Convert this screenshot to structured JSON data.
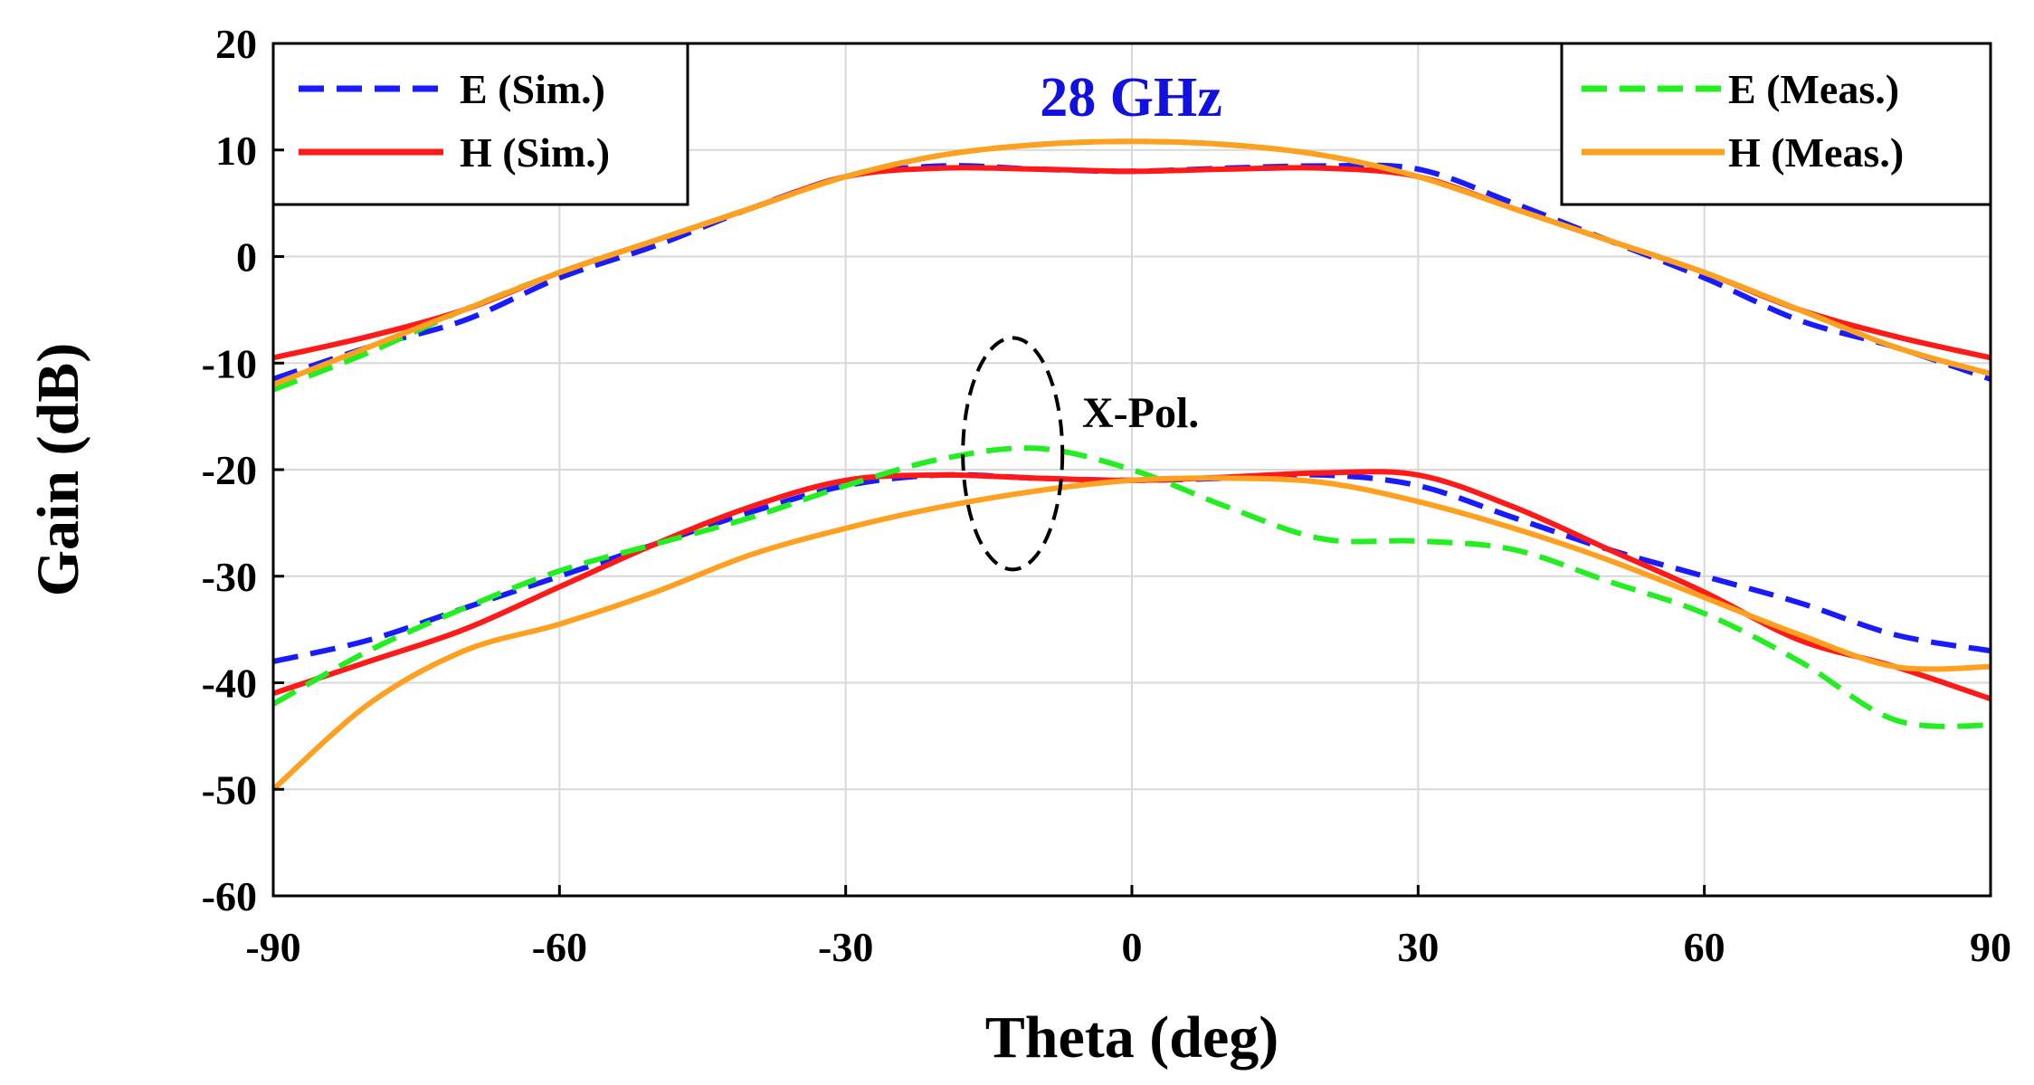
{
  "chart_data": {
    "type": "line",
    "title": "28 GHz",
    "xlabel": "Theta (deg)",
    "ylabel": "Gain (dB)",
    "xlim": [
      -90,
      90
    ],
    "ylim": [
      -60,
      20
    ],
    "xticks": [
      -90,
      -60,
      -30,
      0,
      30,
      60,
      90
    ],
    "yticks": [
      -60,
      -50,
      -40,
      -30,
      -20,
      -10,
      0,
      10,
      20
    ],
    "xtick_labels": [
      "-90",
      "-60",
      "-30",
      "0",
      "30",
      "60",
      "90"
    ],
    "ytick_labels": [
      "-60",
      "-50",
      "-40",
      "-30",
      "-20",
      "-10",
      "0",
      "10",
      "20"
    ],
    "grid": true,
    "legend_left": [
      "E (Sim.)",
      "H (Sim.)"
    ],
    "legend_right": [
      "E (Meas.)",
      "H (Meas.)"
    ],
    "annotation": "X-Pol.",
    "colors": {
      "e_sim": "#1a1aff",
      "h_sim": "#ff1a1a",
      "e_meas": "#22ee22",
      "h_meas": "#ffa020",
      "freq": "#1010e0"
    },
    "series": [
      {
        "name": "E (Sim.) co-pol",
        "key": "e_sim",
        "dash": true,
        "x": [
          -90,
          -80,
          -70,
          -60,
          -50,
          -40,
          -30,
          -20,
          -10,
          0,
          10,
          20,
          30,
          40,
          50,
          60,
          70,
          80,
          90
        ],
        "y": [
          -11.5,
          -8.5,
          -6,
          -2,
          1,
          4.5,
          7.5,
          8.5,
          8.2,
          8,
          8.3,
          8.5,
          8.2,
          5,
          1.5,
          -2,
          -6,
          -8.5,
          -11.5
        ]
      },
      {
        "name": "H (Sim.) co-pol",
        "key": "h_sim",
        "dash": false,
        "x": [
          -90,
          -80,
          -70,
          -60,
          -50,
          -40,
          -30,
          -20,
          -10,
          0,
          10,
          20,
          30,
          40,
          50,
          60,
          70,
          80,
          90
        ],
        "y": [
          -9.5,
          -7.5,
          -5,
          -1.5,
          1.5,
          4.5,
          7.5,
          8.3,
          8.2,
          8,
          8.2,
          8.3,
          7.5,
          4.5,
          1.5,
          -1.5,
          -5,
          -7.5,
          -9.5
        ]
      },
      {
        "name": "E (Meas.) co-pol",
        "key": "e_meas",
        "dash": true,
        "x": [
          -90,
          -80,
          -70,
          -60,
          -50,
          -40,
          -30,
          -20,
          -10,
          0,
          10,
          20,
          30,
          40,
          50,
          60,
          70,
          80,
          90
        ],
        "y": [
          -12.5,
          -9,
          -5,
          -1.5,
          1.5,
          4.5,
          7.5,
          9.5,
          10.5,
          10.8,
          10.5,
          9.5,
          7.5,
          4.5,
          1.5,
          -1.5,
          -5,
          -8.5,
          -11
        ]
      },
      {
        "name": "H (Meas.) co-pol",
        "key": "h_meas",
        "dash": false,
        "x": [
          -90,
          -80,
          -70,
          -60,
          -50,
          -40,
          -30,
          -20,
          -10,
          0,
          10,
          20,
          30,
          40,
          50,
          60,
          70,
          80,
          90
        ],
        "y": [
          -12,
          -8.5,
          -5,
          -1.5,
          1.5,
          4.5,
          7.5,
          9.5,
          10.5,
          10.8,
          10.5,
          9.5,
          7.5,
          4.5,
          1.5,
          -1.5,
          -5,
          -8.5,
          -11
        ]
      },
      {
        "name": "E (Sim.) X-pol",
        "key": "e_sim",
        "dash": true,
        "x": [
          -90,
          -80,
          -70,
          -60,
          -50,
          -40,
          -30,
          -20,
          -10,
          0,
          10,
          20,
          30,
          40,
          50,
          60,
          70,
          80,
          90
        ],
        "y": [
          -38,
          -36,
          -33,
          -30,
          -27,
          -24,
          -21.5,
          -20.5,
          -20.8,
          -21,
          -20.8,
          -20.5,
          -21.5,
          -24.5,
          -27.5,
          -30,
          -32.5,
          -35.5,
          -37
        ]
      },
      {
        "name": "H (Sim.) X-pol",
        "key": "h_sim",
        "dash": false,
        "x": [
          -90,
          -80,
          -70,
          -60,
          -50,
          -40,
          -30,
          -20,
          -10,
          0,
          10,
          20,
          30,
          40,
          50,
          60,
          70,
          80,
          90
        ],
        "y": [
          -41,
          -38,
          -35,
          -31,
          -27,
          -23.5,
          -21,
          -20.5,
          -20.8,
          -21,
          -20.7,
          -20.3,
          -20.5,
          -23.5,
          -27.5,
          -31.5,
          -36,
          -38.5,
          -41.5
        ]
      },
      {
        "name": "E (Meas.) X-pol",
        "key": "e_meas",
        "dash": true,
        "x": [
          -90,
          -80,
          -70,
          -60,
          -50,
          -40,
          -30,
          -20,
          -10,
          0,
          10,
          20,
          30,
          40,
          50,
          60,
          70,
          80,
          90
        ],
        "y": [
          -42,
          -37,
          -33,
          -29.5,
          -27,
          -24.5,
          -21.5,
          -19,
          -18,
          -20,
          -23.5,
          -26.5,
          -26.7,
          -27.5,
          -30.5,
          -33.5,
          -38,
          -43.5,
          -44
        ]
      },
      {
        "name": "H (Meas.) X-pol",
        "key": "h_meas",
        "dash": false,
        "x": [
          -90,
          -80,
          -70,
          -60,
          -50,
          -40,
          -30,
          -20,
          -10,
          0,
          10,
          20,
          30,
          40,
          50,
          60,
          70,
          80,
          90
        ],
        "y": [
          -50,
          -42,
          -37,
          -34.5,
          -31.5,
          -28,
          -25.5,
          -23.5,
          -22,
          -21,
          -20.8,
          -21.2,
          -23,
          -25.5,
          -28.5,
          -32,
          -35.5,
          -38.5,
          -38.5
        ]
      }
    ]
  }
}
